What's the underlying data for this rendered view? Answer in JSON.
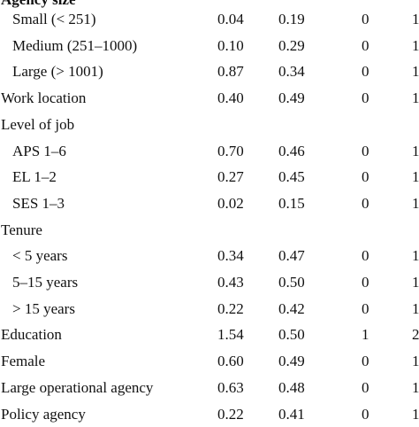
{
  "table": {
    "partial_header": "Agency size",
    "rows": [
      {
        "label": "Small (< 251)",
        "mean": "0.04",
        "sd": "0.19",
        "min": "0",
        "max": "1",
        "indent": true
      },
      {
        "label": "Medium (251–1000)",
        "mean": "0.10",
        "sd": "0.29",
        "min": "0",
        "max": "1",
        "indent": true
      },
      {
        "label": "Large (> 1001)",
        "mean": "0.87",
        "sd": "0.34",
        "min": "0",
        "max": "1",
        "indent": true
      },
      {
        "label": "Work location",
        "mean": "0.40",
        "sd": "0.49",
        "min": "0",
        "max": "1",
        "indent": false
      },
      {
        "label": "Level of job",
        "mean": "",
        "sd": "",
        "min": "",
        "max": "",
        "indent": false
      },
      {
        "label": "APS 1–6",
        "mean": "0.70",
        "sd": "0.46",
        "min": "0",
        "max": "1",
        "indent": true
      },
      {
        "label": "EL 1–2",
        "mean": "0.27",
        "sd": "0.45",
        "min": "0",
        "max": "1",
        "indent": true
      },
      {
        "label": "SES 1–3",
        "mean": "0.02",
        "sd": "0.15",
        "min": "0",
        "max": "1",
        "indent": true
      },
      {
        "label": "Tenure",
        "mean": "",
        "sd": "",
        "min": "",
        "max": "",
        "indent": false
      },
      {
        "label": "< 5 years",
        "mean": "0.34",
        "sd": "0.47",
        "min": "0",
        "max": "1",
        "indent": true
      },
      {
        "label": "5–15 years",
        "mean": "0.43",
        "sd": "0.50",
        "min": "0",
        "max": "1",
        "indent": true
      },
      {
        "label": "> 15 years",
        "mean": "0.22",
        "sd": "0.42",
        "min": "0",
        "max": "1",
        "indent": true
      },
      {
        "label": "Education",
        "mean": "1.54",
        "sd": "0.50",
        "min": "1",
        "max": "2",
        "indent": false
      },
      {
        "label": "Female",
        "mean": "0.60",
        "sd": "0.49",
        "min": "0",
        "max": "1",
        "indent": false
      },
      {
        "label": "Large operational agency",
        "mean": "0.63",
        "sd": "0.48",
        "min": "0",
        "max": "1",
        "indent": false
      },
      {
        "label": "Policy agency",
        "mean": "0.22",
        "sd": "0.41",
        "min": "0",
        "max": "1",
        "indent": false
      }
    ]
  }
}
